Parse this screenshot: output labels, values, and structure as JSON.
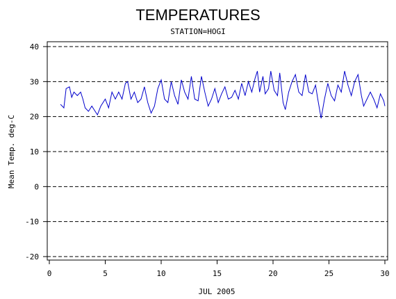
{
  "chart_data": {
    "type": "line",
    "title": "TEMPERATURES",
    "subtitle": "STATION=HOGI",
    "x_label": "JUL 2005",
    "y_label": "Mean Temp. deg-C",
    "x": [
      1.0,
      1.3,
      1.5,
      1.8,
      2.0,
      2.2,
      2.5,
      2.8,
      3.0,
      3.2,
      3.5,
      3.8,
      4.0,
      4.3,
      4.6,
      5.0,
      5.3,
      5.6,
      5.9,
      6.2,
      6.5,
      6.8,
      7.0,
      7.3,
      7.6,
      7.9,
      8.2,
      8.5,
      8.8,
      9.1,
      9.4,
      9.7,
      10.0,
      10.3,
      10.6,
      10.9,
      11.2,
      11.5,
      11.8,
      12.1,
      12.4,
      12.7,
      13.0,
      13.3,
      13.6,
      13.9,
      14.2,
      14.5,
      14.8,
      15.1,
      15.4,
      15.7,
      16.0,
      16.3,
      16.6,
      16.9,
      17.2,
      17.5,
      17.8,
      18.1,
      18.4,
      18.6,
      18.8,
      19.1,
      19.3,
      19.6,
      19.8,
      20.1,
      20.4,
      20.6,
      20.9,
      21.1,
      21.4,
      21.7,
      22.0,
      22.3,
      22.6,
      22.9,
      23.2,
      23.5,
      23.8,
      24.0,
      24.3,
      24.6,
      24.9,
      25.2,
      25.5,
      25.8,
      26.1,
      26.4,
      26.7,
      27.0,
      27.3,
      27.6,
      27.9,
      28.1,
      28.4,
      28.7,
      29.0,
      29.3,
      29.6,
      29.9,
      30.0
    ],
    "series": [
      {
        "name": "Mean Temp.",
        "color": "#0000cc",
        "values": [
          23.5,
          22.5,
          28,
          28.5,
          25.5,
          27,
          26,
          27,
          25,
          22.5,
          21.5,
          23,
          22,
          20.5,
          23,
          25,
          22.5,
          27,
          25,
          27,
          25,
          29.5,
          30,
          25,
          27,
          24,
          25,
          28.5,
          24,
          21,
          23,
          28,
          30.5,
          25,
          24,
          30,
          26,
          23.5,
          30.5,
          27,
          25,
          31.5,
          25,
          24.5,
          31.5,
          27,
          23,
          25,
          28,
          24,
          26.5,
          28.5,
          25,
          25.5,
          27.5,
          25,
          29.5,
          26,
          30,
          27,
          31,
          33,
          27,
          31.5,
          26.5,
          28,
          33,
          27.5,
          26,
          32.5,
          24,
          22,
          27,
          30,
          32,
          27,
          26,
          32,
          27,
          26.5,
          29,
          25,
          19.5,
          25,
          29.5,
          26,
          24.5,
          29,
          27,
          33,
          29,
          26,
          30,
          32,
          26,
          23,
          25,
          27,
          25,
          22.5,
          26.5,
          24.5,
          23
        ]
      }
    ],
    "xlim": [
      0,
      30
    ],
    "xticks": [
      0,
      5,
      10,
      15,
      20,
      25,
      30
    ],
    "ylim": [
      -20,
      40
    ],
    "yticks": [
      -20,
      -10,
      0,
      10,
      20,
      30,
      40
    ],
    "grid": true
  }
}
